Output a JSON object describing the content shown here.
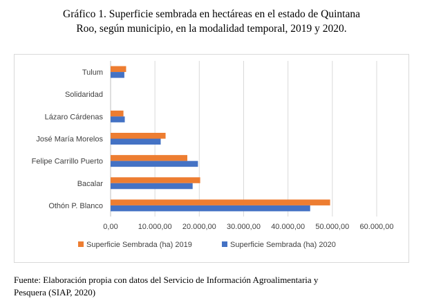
{
  "header": {
    "title_line1": "Gráfico 1. Superficie sembrada en hectáreas en el estado de Quintana",
    "title_line2": "Roo, según municipio, en la modalidad temporal, 2019 y 2020."
  },
  "footer": {
    "source_line1": "Fuente: Elaboración propia con datos del Servicio de Información Agroalimentaria y",
    "source_line2": "Pesquera (SIAP, 2020)"
  },
  "chart_data": {
    "type": "bar",
    "orientation": "horizontal",
    "categories": [
      "Tulum",
      "Solidaridad",
      "Lázaro Cárdenas",
      "José María Morelos",
      "Felipe Carrillo Puerto",
      "Bacalar",
      "Othón P. Blanco"
    ],
    "series": [
      {
        "name": "Superficie Sembrada (ha) 2019",
        "color": "#ED7D31",
        "values": [
          3500,
          0,
          2900,
          12400,
          17300,
          20200,
          49500
        ]
      },
      {
        "name": "Superficie Sembrada (ha) 2020",
        "color": "#4472C4",
        "values": [
          3100,
          0,
          3200,
          11300,
          19700,
          18500,
          45000
        ]
      }
    ],
    "xlim": [
      0,
      60000
    ],
    "ticks": [
      0,
      10000,
      20000,
      30000,
      40000,
      50000,
      60000
    ],
    "tick_labels": [
      "0,00",
      "10.000,00",
      "20.000,00",
      "30.000,00",
      "40.000,00",
      "50.000,00",
      "60.000,00"
    ],
    "grid": true,
    "legend": "bottom",
    "xlabel": "",
    "ylabel": ""
  }
}
